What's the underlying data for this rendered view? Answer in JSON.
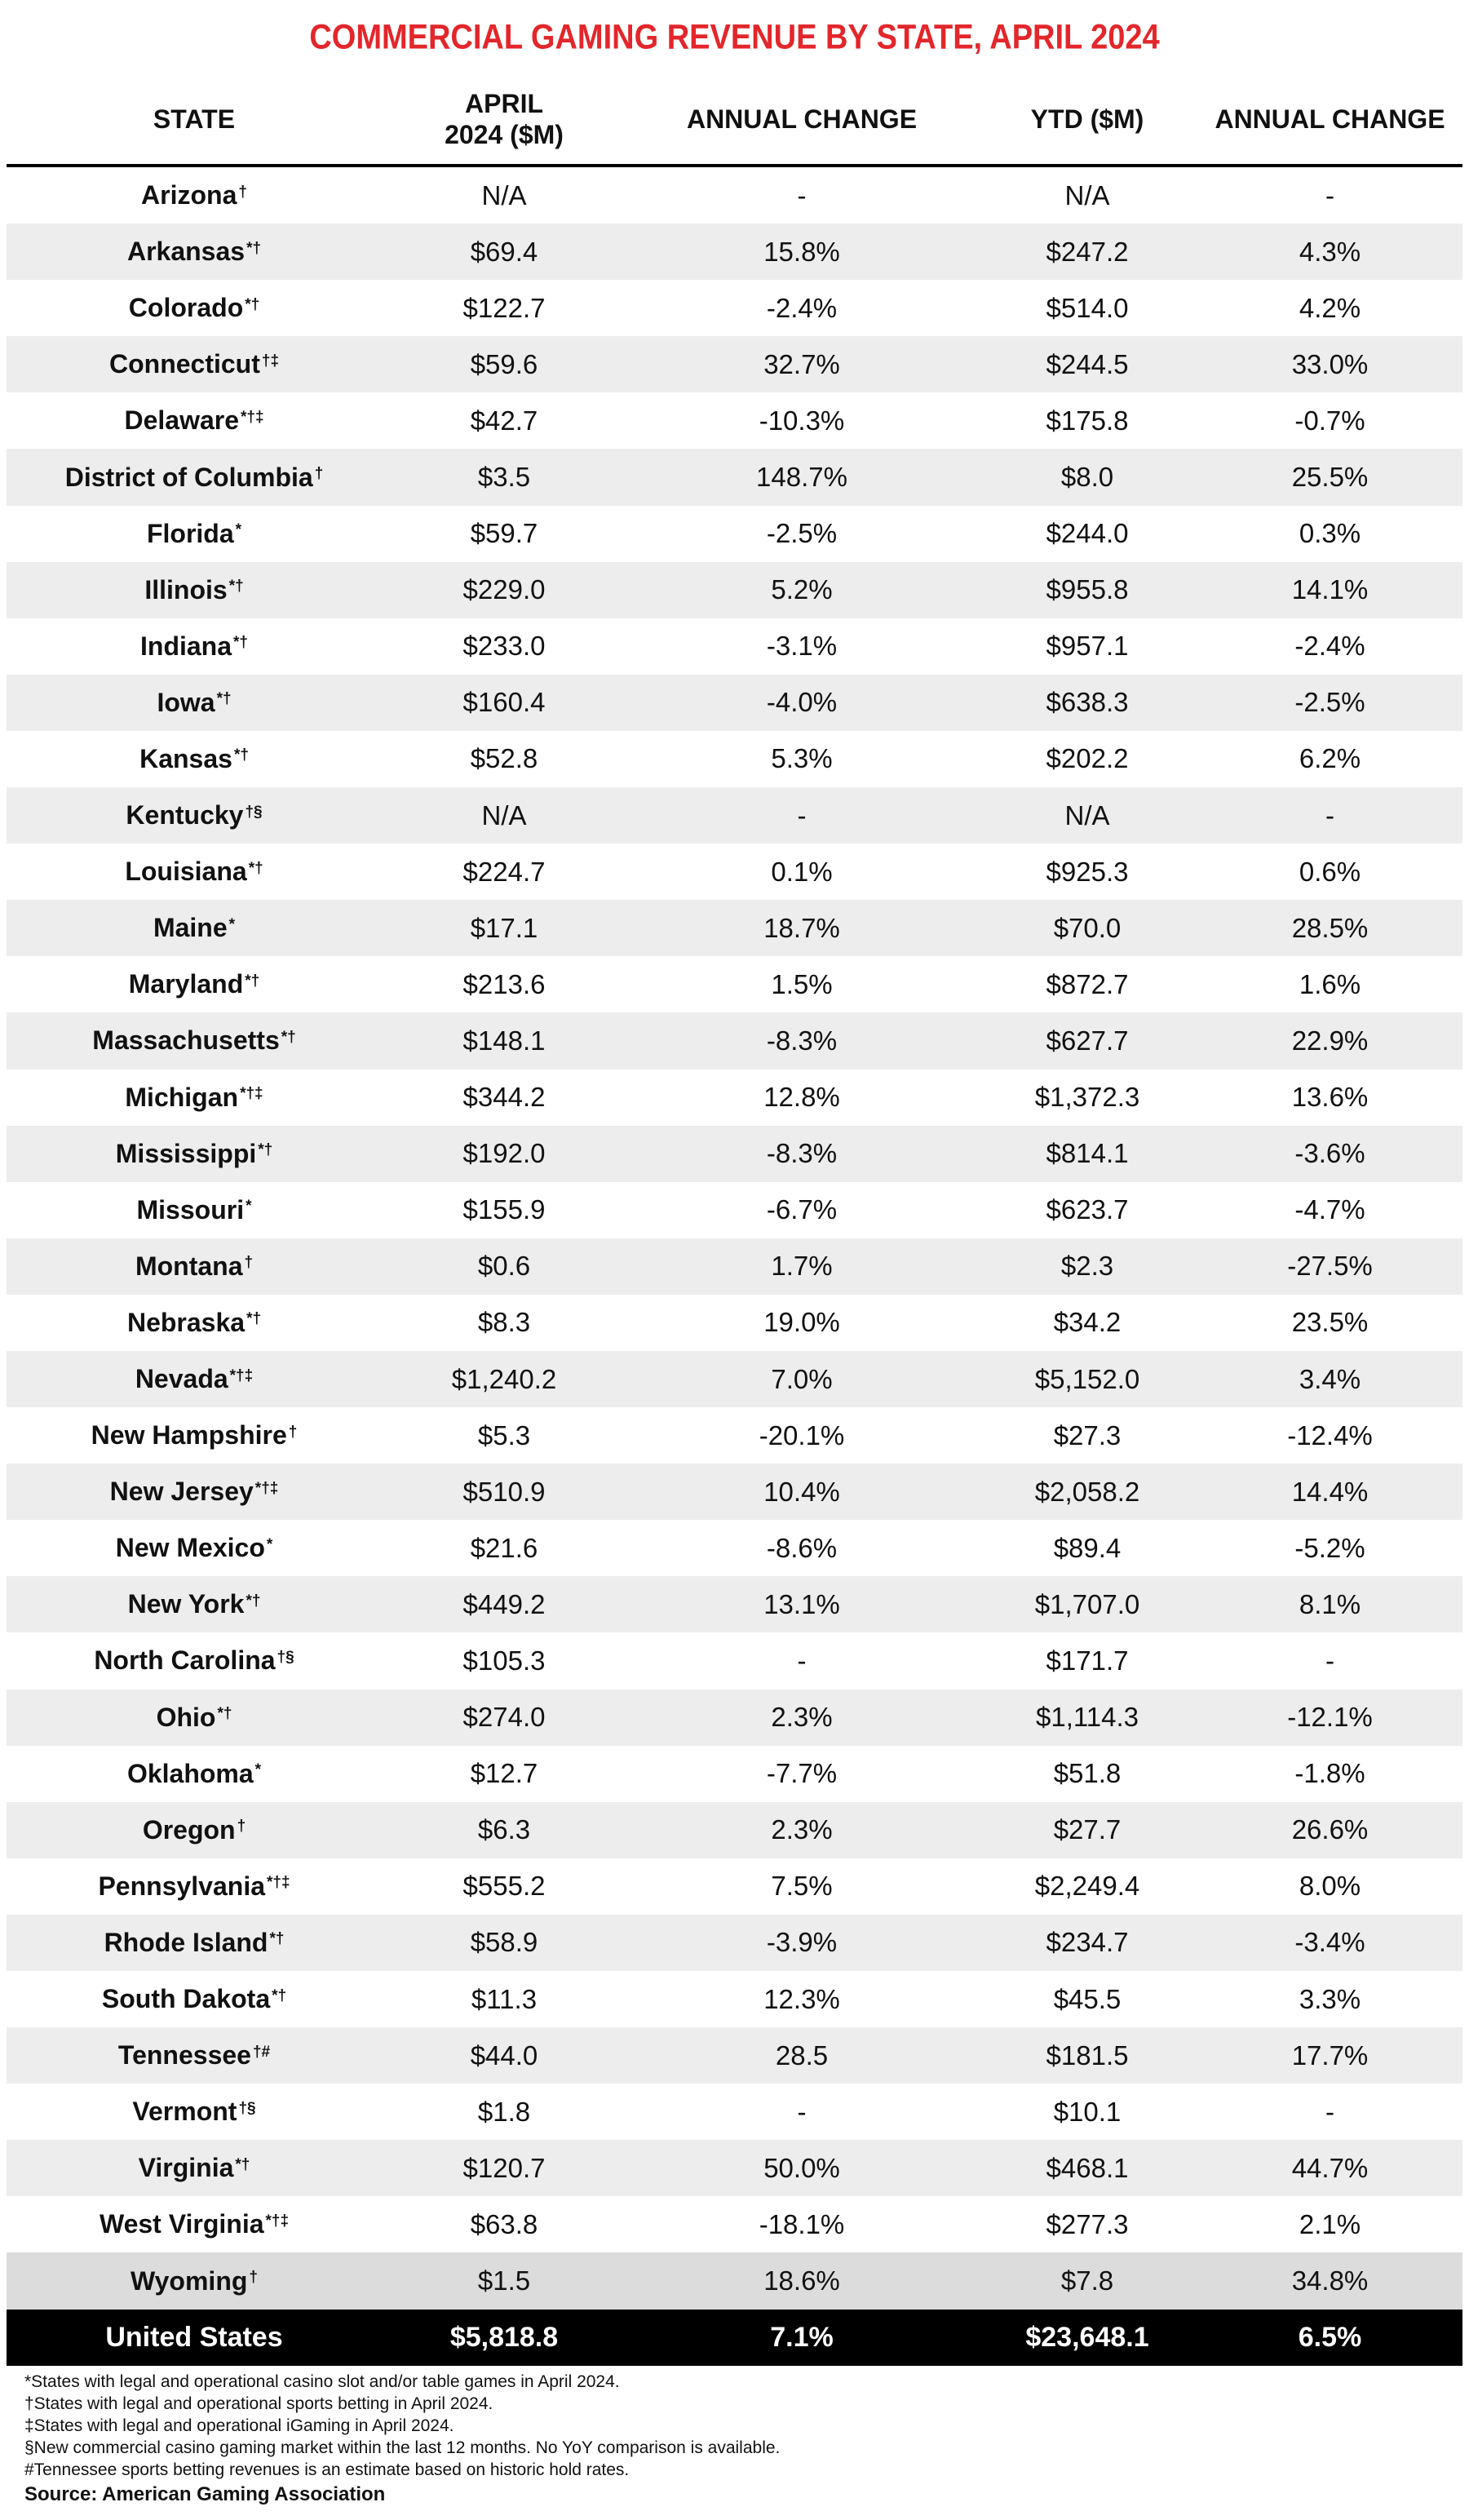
{
  "title": "COMMERCIAL GAMING REVENUE BY STATE, APRIL 2024",
  "columns": [
    "STATE",
    "APRIL\n2024 ($M)",
    "ANNUAL CHANGE",
    "YTD ($M)",
    "ANNUAL CHANGE"
  ],
  "rows": [
    {
      "state": "Arizona",
      "marks": "†",
      "april": "N/A",
      "april_change": "-",
      "ytd": "N/A",
      "ytd_change": "-"
    },
    {
      "state": "Arkansas",
      "marks": "*†",
      "april": "$69.4",
      "april_change": "15.8%",
      "ytd": "$247.2",
      "ytd_change": "4.3%"
    },
    {
      "state": "Colorado",
      "marks": "*†",
      "april": "$122.7",
      "april_change": "-2.4%",
      "ytd": "$514.0",
      "ytd_change": "4.2%"
    },
    {
      "state": "Connecticut",
      "marks": "†‡",
      "april": "$59.6",
      "april_change": "32.7%",
      "ytd": "$244.5",
      "ytd_change": "33.0%"
    },
    {
      "state": "Delaware",
      "marks": "*†‡",
      "april": "$42.7",
      "april_change": "-10.3%",
      "ytd": "$175.8",
      "ytd_change": "-0.7%"
    },
    {
      "state": "District of Columbia",
      "marks": "†",
      "april": "$3.5",
      "april_change": "148.7%",
      "ytd": "$8.0",
      "ytd_change": "25.5%"
    },
    {
      "state": "Florida",
      "marks": "*",
      "april": "$59.7",
      "april_change": "-2.5%",
      "ytd": "$244.0",
      "ytd_change": "0.3%"
    },
    {
      "state": "Illinois",
      "marks": "*†",
      "april": "$229.0",
      "april_change": "5.2%",
      "ytd": "$955.8",
      "ytd_change": "14.1%"
    },
    {
      "state": "Indiana",
      "marks": "*†",
      "april": "$233.0",
      "april_change": "-3.1%",
      "ytd": "$957.1",
      "ytd_change": "-2.4%"
    },
    {
      "state": "Iowa",
      "marks": "*†",
      "april": "$160.4",
      "april_change": "-4.0%",
      "ytd": "$638.3",
      "ytd_change": "-2.5%"
    },
    {
      "state": "Kansas",
      "marks": "*†",
      "april": "$52.8",
      "april_change": "5.3%",
      "ytd": "$202.2",
      "ytd_change": "6.2%"
    },
    {
      "state": "Kentucky",
      "marks": "†§",
      "april": "N/A",
      "april_change": "-",
      "ytd": "N/A",
      "ytd_change": "-"
    },
    {
      "state": "Louisiana",
      "marks": "*†",
      "april": "$224.7",
      "april_change": "0.1%",
      "ytd": "$925.3",
      "ytd_change": "0.6%"
    },
    {
      "state": "Maine",
      "marks": "*",
      "april": "$17.1",
      "april_change": "18.7%",
      "ytd": "$70.0",
      "ytd_change": "28.5%"
    },
    {
      "state": "Maryland",
      "marks": "*†",
      "april": "$213.6",
      "april_change": "1.5%",
      "ytd": "$872.7",
      "ytd_change": "1.6%"
    },
    {
      "state": "Massachusetts",
      "marks": "*†",
      "april": "$148.1",
      "april_change": "-8.3%",
      "ytd": "$627.7",
      "ytd_change": "22.9%"
    },
    {
      "state": "Michigan",
      "marks": "*†‡",
      "april": "$344.2",
      "april_change": "12.8%",
      "ytd": "$1,372.3",
      "ytd_change": "13.6%"
    },
    {
      "state": "Mississippi",
      "marks": "*†",
      "april": "$192.0",
      "april_change": "-8.3%",
      "ytd": "$814.1",
      "ytd_change": "-3.6%"
    },
    {
      "state": "Missouri",
      "marks": "*",
      "april": "$155.9",
      "april_change": "-6.7%",
      "ytd": "$623.7",
      "ytd_change": "-4.7%"
    },
    {
      "state": "Montana",
      "marks": "†",
      "april": "$0.6",
      "april_change": "1.7%",
      "ytd": "$2.3",
      "ytd_change": "-27.5%"
    },
    {
      "state": "Nebraska",
      "marks": "*†",
      "april": "$8.3",
      "april_change": "19.0%",
      "ytd": "$34.2",
      "ytd_change": "23.5%"
    },
    {
      "state": "Nevada",
      "marks": "*†‡",
      "april": "$1,240.2",
      "april_change": "7.0%",
      "ytd": "$5,152.0",
      "ytd_change": "3.4%"
    },
    {
      "state": "New Hampshire",
      "marks": "†",
      "april": "$5.3",
      "april_change": "-20.1%",
      "ytd": "$27.3",
      "ytd_change": "-12.4%"
    },
    {
      "state": "New Jersey",
      "marks": "*†‡",
      "april": "$510.9",
      "april_change": "10.4%",
      "ytd": "$2,058.2",
      "ytd_change": "14.4%"
    },
    {
      "state": "New Mexico",
      "marks": "*",
      "april": "$21.6",
      "april_change": "-8.6%",
      "ytd": "$89.4",
      "ytd_change": "-5.2%"
    },
    {
      "state": "New York",
      "marks": "*†",
      "april": "$449.2",
      "april_change": "13.1%",
      "ytd": "$1,707.0",
      "ytd_change": "8.1%"
    },
    {
      "state": "North Carolina",
      "marks": "†§",
      "april": "$105.3",
      "april_change": "-",
      "ytd": "$171.7",
      "ytd_change": "-"
    },
    {
      "state": "Ohio",
      "marks": "*†",
      "april": "$274.0",
      "april_change": "2.3%",
      "ytd": "$1,114.3",
      "ytd_change": "-12.1%"
    },
    {
      "state": "Oklahoma",
      "marks": "*",
      "april": "$12.7",
      "april_change": "-7.7%",
      "ytd": "$51.8",
      "ytd_change": "-1.8%"
    },
    {
      "state": "Oregon",
      "marks": "†",
      "april": "$6.3",
      "april_change": "2.3%",
      "ytd": "$27.7",
      "ytd_change": "26.6%"
    },
    {
      "state": "Pennsylvania",
      "marks": "*†‡",
      "april": "$555.2",
      "april_change": "7.5%",
      "ytd": "$2,249.4",
      "ytd_change": "8.0%"
    },
    {
      "state": "Rhode Island",
      "marks": "*†",
      "april": "$58.9",
      "april_change": "-3.9%",
      "ytd": "$234.7",
      "ytd_change": "-3.4%"
    },
    {
      "state": "South Dakota",
      "marks": "*†",
      "april": "$11.3",
      "april_change": "12.3%",
      "ytd": "$45.5",
      "ytd_change": "3.3%"
    },
    {
      "state": "Tennessee",
      "marks": "†#",
      "april": "$44.0",
      "april_change": "28.5",
      "ytd": "$181.5",
      "ytd_change": "17.7%"
    },
    {
      "state": "Vermont",
      "marks": "†§",
      "april": "$1.8",
      "april_change": "-",
      "ytd": "$10.1",
      "ytd_change": "-"
    },
    {
      "state": "Virginia",
      "marks": "*†",
      "april": "$120.7",
      "april_change": "50.0%",
      "ytd": "$468.1",
      "ytd_change": "44.7%"
    },
    {
      "state": "West Virginia",
      "marks": "*†‡",
      "april": "$63.8",
      "april_change": "-18.1%",
      "ytd": "$277.3",
      "ytd_change": "2.1%"
    },
    {
      "state": "Wyoming",
      "marks": "†",
      "april": "$1.5",
      "april_change": "18.6%",
      "ytd": "$7.8",
      "ytd_change": "34.8%"
    }
  ],
  "total": {
    "state": "United States",
    "marks": "",
    "april": "$5,818.8",
    "april_change": "7.1%",
    "ytd": "$23,648.1",
    "ytd_change": "6.5%"
  },
  "footnotes": [
    "*States with legal and operational casino slot and/or table games in April 2024.",
    "†States with legal and operational sports betting in April 2024.",
    "‡States with legal and operational iGaming in April 2024.",
    "§New commercial casino gaming market within the last 12 months. No YoY comparison is available.",
    "#Tennessee sports betting revenues is an estimate based on historic hold rates."
  ],
  "source": "Source: American Gaming Association",
  "colors": {
    "title_red": "#e3262b",
    "row_shade": "#ededed",
    "last_row_shade": "#dcdcdc",
    "total_bg": "#000000",
    "total_text": "#ffffff"
  }
}
